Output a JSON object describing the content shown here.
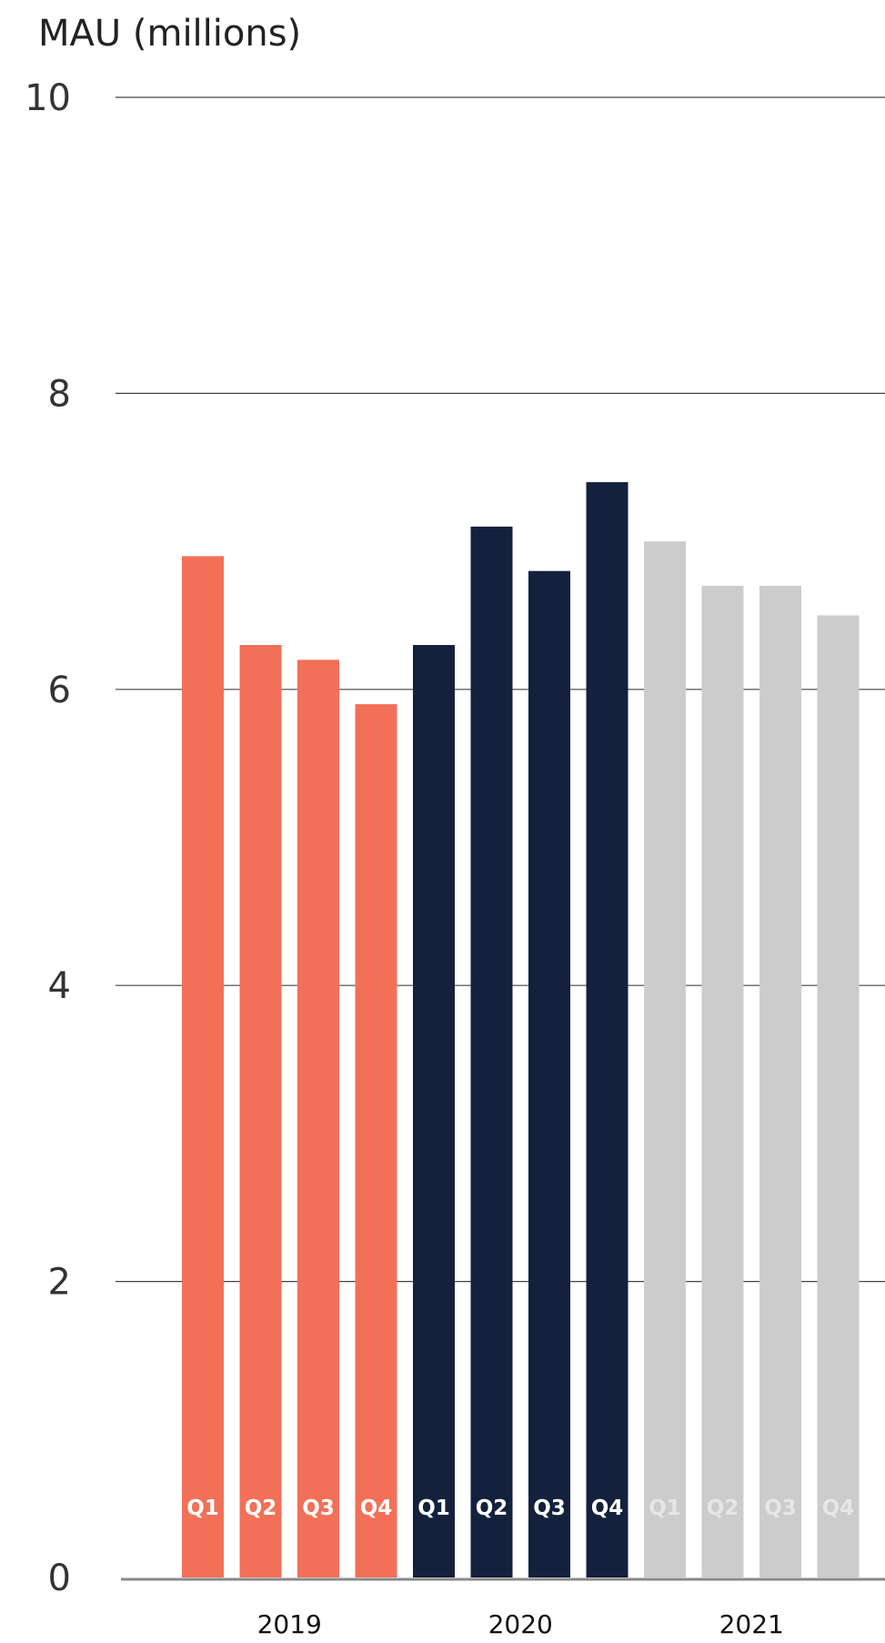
{
  "chart_data": {
    "type": "bar",
    "ylabel": "MAU (millions)",
    "ylim": [
      0,
      10
    ],
    "yticks": [
      0,
      2,
      4,
      6,
      8,
      10
    ],
    "grid": true,
    "groups": [
      {
        "label": "2019",
        "color": "#F27058",
        "bar_label_color": "#ffffff",
        "bars": [
          {
            "label": "Q1",
            "value": 6.9
          },
          {
            "label": "Q2",
            "value": 6.3
          },
          {
            "label": "Q3",
            "value": 6.2
          },
          {
            "label": "Q4",
            "value": 5.9
          }
        ]
      },
      {
        "label": "2020",
        "color": "#14213D",
        "bar_label_color": "#ffffff",
        "bars": [
          {
            "label": "Q1",
            "value": 6.3
          },
          {
            "label": "Q2",
            "value": 7.1
          },
          {
            "label": "Q3",
            "value": 6.8
          },
          {
            "label": "Q4",
            "value": 7.4
          }
        ]
      },
      {
        "label": "2021",
        "color": "#CCCCCC",
        "bar_label_color": "#e6e6e6",
        "bars": [
          {
            "label": "Q1",
            "value": 7.0
          },
          {
            "label": "Q2",
            "value": 6.7
          },
          {
            "label": "Q3",
            "value": 6.7
          },
          {
            "label": "Q4",
            "value": 6.5
          }
        ]
      }
    ]
  }
}
